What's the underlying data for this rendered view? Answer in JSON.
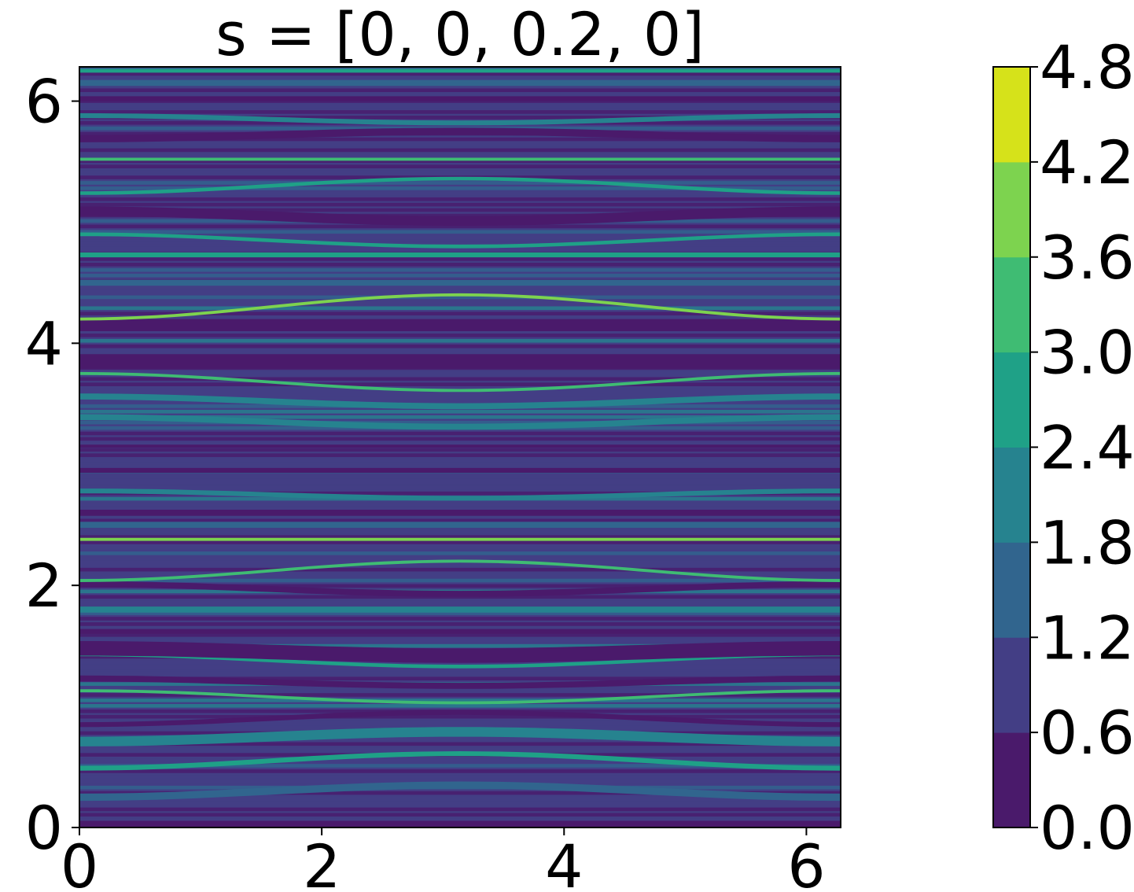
{
  "chart_data": {
    "type": "heatmap",
    "title": "s = [0, 0, 0.2, 0]",
    "xlabel": "",
    "ylabel": "",
    "xlim": [
      0,
      6.283
    ],
    "ylim": [
      0,
      6.283
    ],
    "x_ticks": [
      "0",
      "2",
      "4",
      "6"
    ],
    "x_tick_values": [
      0,
      2,
      4,
      6
    ],
    "y_ticks": [
      "0",
      "2",
      "4",
      "6"
    ],
    "y_tick_values": [
      0,
      2,
      4,
      6
    ],
    "colorbar": {
      "levels": [
        0.0,
        0.6,
        1.2,
        1.8,
        2.4,
        3.0,
        3.6,
        4.2,
        4.8
      ],
      "tick_labels": [
        "0.0",
        "0.6",
        "1.2",
        "1.8",
        "2.4",
        "3.0",
        "3.6",
        "4.2",
        "4.8"
      ],
      "colors": [
        "#481a6c",
        "#453882",
        "#3b528b",
        "#2c728e",
        "#21918c",
        "#28ae80",
        "#5ec962",
        "#addc30",
        "#fde725"
      ],
      "bin_colors": [
        "#4a1a6b",
        "#433e85",
        "#31658e",
        "#26838f",
        "#1fa187",
        "#3fbc73",
        "#7dd34f",
        "#d6e21a"
      ]
    },
    "background_level": 0.9,
    "bands": [
      {
        "y": 0.03,
        "level": 0.3,
        "width": 0.05,
        "amp": 0.0
      },
      {
        "y": 0.3,
        "level": 1.4,
        "width": 0.06,
        "amp": 0.05
      },
      {
        "y": 0.55,
        "level": 2.5,
        "width": 0.04,
        "amp": 0.06
      },
      {
        "y": 0.75,
        "level": 1.8,
        "width": 0.08,
        "amp": 0.04
      },
      {
        "y": 0.9,
        "level": 0.3,
        "width": 0.04,
        "amp": 0.05
      },
      {
        "y": 1.08,
        "level": 3.3,
        "width": 0.025,
        "amp": -0.05
      },
      {
        "y": 1.2,
        "level": 0.3,
        "width": 0.05,
        "amp": -0.03
      },
      {
        "y": 1.38,
        "level": 2.6,
        "width": 0.03,
        "amp": -0.05
      },
      {
        "y": 1.45,
        "level": 0.3,
        "width": 0.12,
        "amp": -0.03
      },
      {
        "y": 1.62,
        "level": 0.3,
        "width": 0.04,
        "amp": 0.0
      },
      {
        "y": 1.8,
        "level": 2.0,
        "width": 0.05,
        "amp": 0.0
      },
      {
        "y": 1.97,
        "level": 0.3,
        "width": 0.05,
        "amp": -0.04
      },
      {
        "y": 2.12,
        "level": 3.5,
        "width": 0.025,
        "amp": 0.08
      },
      {
        "y": 2.38,
        "level": 3.9,
        "width": 0.025,
        "amp": 0.0
      },
      {
        "y": 2.5,
        "level": 1.5,
        "width": 0.05,
        "amp": 0.0
      },
      {
        "y": 2.6,
        "level": 0.3,
        "width": 0.05,
        "amp": 0.0
      },
      {
        "y": 2.75,
        "level": 2.3,
        "width": 0.04,
        "amp": -0.03
      },
      {
        "y": 2.95,
        "level": 0.3,
        "width": 0.04,
        "amp": 0.0
      },
      {
        "y": 3.15,
        "level": 0.3,
        "width": 0.025,
        "amp": 0.0
      },
      {
        "y": 3.35,
        "level": 2.2,
        "width": 0.05,
        "amp": -0.04
      },
      {
        "y": 3.52,
        "level": 1.8,
        "width": 0.05,
        "amp": -0.04
      },
      {
        "y": 3.68,
        "level": 3.1,
        "width": 0.025,
        "amp": -0.07
      },
      {
        "y": 3.85,
        "level": 0.3,
        "width": 0.12,
        "amp": 0.0
      },
      {
        "y": 4.15,
        "level": 0.3,
        "width": 0.1,
        "amp": 0.0
      },
      {
        "y": 4.3,
        "level": 3.7,
        "width": 0.025,
        "amp": 0.1
      },
      {
        "y": 4.5,
        "level": 1.6,
        "width": 0.05,
        "amp": 0.0
      },
      {
        "y": 4.73,
        "level": 2.8,
        "width": 0.04,
        "amp": 0.0
      },
      {
        "y": 4.85,
        "level": 2.6,
        "width": 0.03,
        "amp": -0.05
      },
      {
        "y": 5.05,
        "level": 0.3,
        "width": 0.08,
        "amp": -0.04
      },
      {
        "y": 5.3,
        "level": 2.7,
        "width": 0.03,
        "amp": 0.06
      },
      {
        "y": 5.52,
        "level": 3.2,
        "width": 0.025,
        "amp": 0.0
      },
      {
        "y": 5.72,
        "level": 0.3,
        "width": 0.06,
        "amp": 0.03
      },
      {
        "y": 5.85,
        "level": 1.9,
        "width": 0.04,
        "amp": -0.03
      },
      {
        "y": 6.02,
        "level": 0.3,
        "width": 0.04,
        "amp": 0.0
      },
      {
        "y": 6.15,
        "level": 1.6,
        "width": 0.05,
        "amp": 0.0
      },
      {
        "y": 6.25,
        "level": 2.4,
        "width": 0.03,
        "amp": 0.0
      }
    ],
    "grid": false,
    "legend": "colorbar-right"
  }
}
